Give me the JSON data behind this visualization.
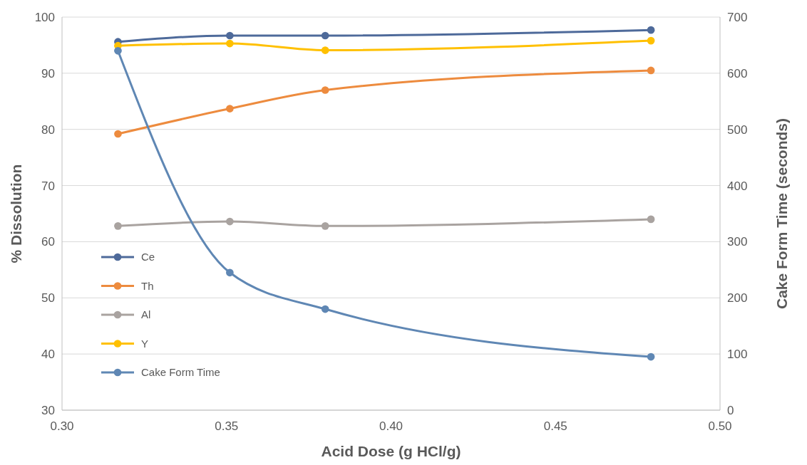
{
  "chart_data": {
    "type": "line",
    "xlabel": "Acid Dose (g HCl/g)",
    "ylabel": "% Dissolution",
    "y2label": "Cake Form Time (seconds)",
    "x": [
      0.317,
      0.351,
      0.38,
      0.479
    ],
    "xlim": [
      0.3,
      0.5
    ],
    "xticks": [
      {
        "value": 0.3,
        "label": "0.30"
      },
      {
        "value": 0.35,
        "label": "0.35"
      },
      {
        "value": 0.4,
        "label": "0.40"
      },
      {
        "value": 0.45,
        "label": "0.45"
      },
      {
        "value": 0.5,
        "label": "0.50"
      }
    ],
    "ylim": [
      30,
      100
    ],
    "yticks": [
      30,
      40,
      50,
      60,
      70,
      80,
      90,
      100
    ],
    "y2lim": [
      0,
      700
    ],
    "y2ticks": [
      0,
      100,
      200,
      300,
      400,
      500,
      600,
      700
    ],
    "grid": "y",
    "legend": "left",
    "marker": "circle",
    "line_style": "solid",
    "series": [
      {
        "name": "Ce",
        "color": "#4e6a9a",
        "values": [
          95.6,
          96.7,
          96.7,
          97.7
        ]
      },
      {
        "name": "Th",
        "color": "#ed8b3e",
        "values": [
          79.2,
          83.7,
          87.0,
          90.5
        ]
      },
      {
        "name": "Al",
        "color": "#a9a3a0",
        "values": [
          62.8,
          63.6,
          62.8,
          64.0
        ]
      },
      {
        "name": "Y",
        "color": "#ffc000",
        "values": [
          94.9,
          95.3,
          94.1,
          95.8
        ]
      },
      {
        "name": "Cake Form Time",
        "color": "#5f87b4",
        "axis": "y2",
        "values": [
          640,
          245,
          180,
          95
        ]
      }
    ]
  }
}
